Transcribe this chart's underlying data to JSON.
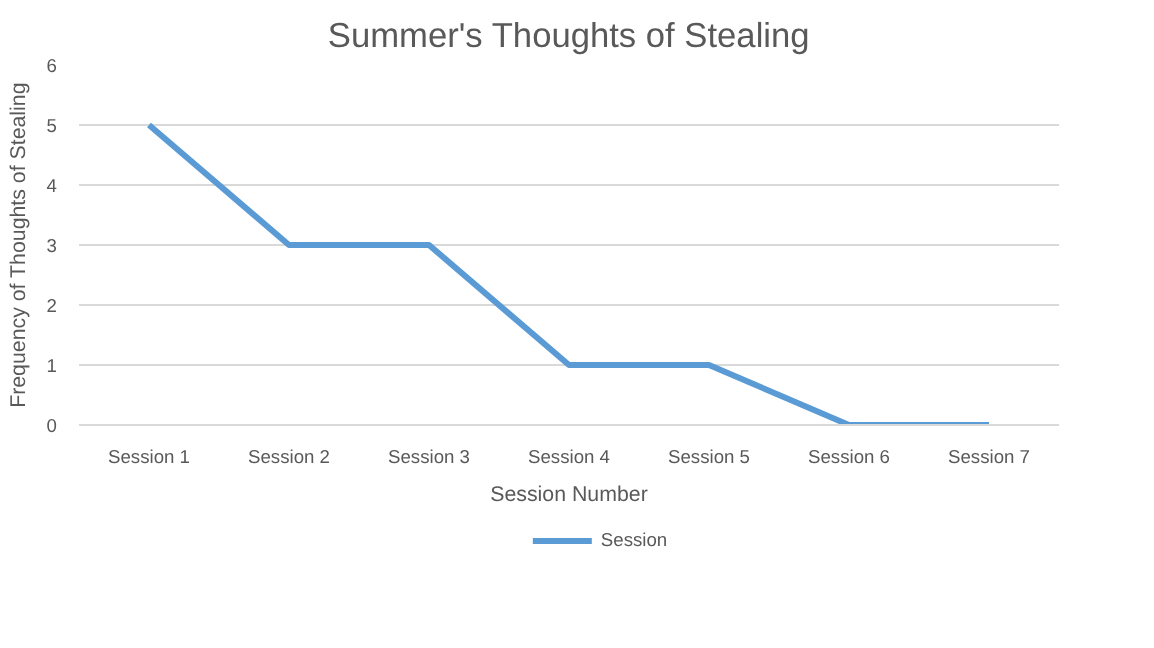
{
  "chart_data": {
    "type": "line",
    "title": "Summer's Thoughts of Stealing",
    "xlabel": "Session Number",
    "ylabel": "Frequency of Thoughts of Stealing",
    "categories": [
      "Session 1",
      "Session 2",
      "Session 3",
      "Session 4",
      "Session 5",
      "Session 6",
      "Session 7"
    ],
    "series": [
      {
        "name": "Session",
        "color": "#5b9bd5",
        "values": [
          5,
          3,
          3,
          1,
          1,
          0,
          0
        ]
      }
    ],
    "ylim": [
      0,
      6
    ],
    "yticks": [
      0,
      1,
      2,
      3,
      4,
      5,
      6
    ],
    "grid": "y",
    "legend": "bottom",
    "marker": "none",
    "line_style": "solid"
  }
}
